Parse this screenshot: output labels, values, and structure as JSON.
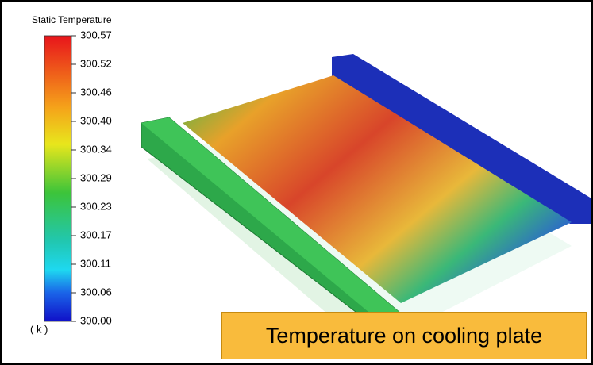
{
  "legend": {
    "title": "Static Temperature",
    "ticks": [
      "300.57",
      "300.52",
      "300.46",
      "300.40",
      "300.34",
      "300.29",
      "300.23",
      "300.17",
      "300.11",
      "300.06",
      "300.00"
    ],
    "unit": "( k )"
  },
  "caption": "Temperature on cooling plate"
}
